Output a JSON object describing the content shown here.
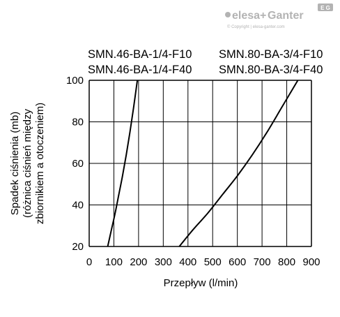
{
  "brand": {
    "name_left": "elesa",
    "name_plus": "+",
    "name_right": "Ganter",
    "copyright": "© Copyright | elesa-ganter.com",
    "badge": "E G"
  },
  "colors": {
    "line": "#000000",
    "grid": "#000000",
    "logo": "#b3b3b3"
  },
  "chart_data": {
    "type": "line",
    "xlabel": "Przepływ (l/min)",
    "ylabel_lines": [
      "Spadek ciśnienia (mb)",
      "(różnica ciśnień między",
      "zbiornikiem a otoczeniem)"
    ],
    "xlim": [
      0,
      900
    ],
    "ylim": [
      20,
      100
    ],
    "xticks": [
      0,
      100,
      200,
      300,
      400,
      500,
      600,
      700,
      800,
      900
    ],
    "yticks": [
      20,
      40,
      60,
      80,
      100
    ],
    "grid": true,
    "legend_labels": [
      [
        "SMN.46-BA-1/4-F10",
        "SMN.46-BA-1/4-F40"
      ],
      [
        "SMN.80-BA-3/4-F10",
        "SMN.80-BA-3/4-F40"
      ]
    ],
    "series": [
      {
        "x": [
          75,
          90,
          105,
          120,
          135,
          150,
          165,
          180,
          195
        ],
        "y": [
          20,
          28,
          36,
          45,
          54,
          64,
          75,
          87,
          100
        ]
      },
      {
        "x": [
          365,
          420,
          480,
          540,
          600,
          660,
          720,
          780,
          845
        ],
        "y": [
          20,
          28,
          36,
          45,
          54,
          64,
          75,
          87,
          100
        ]
      }
    ]
  }
}
